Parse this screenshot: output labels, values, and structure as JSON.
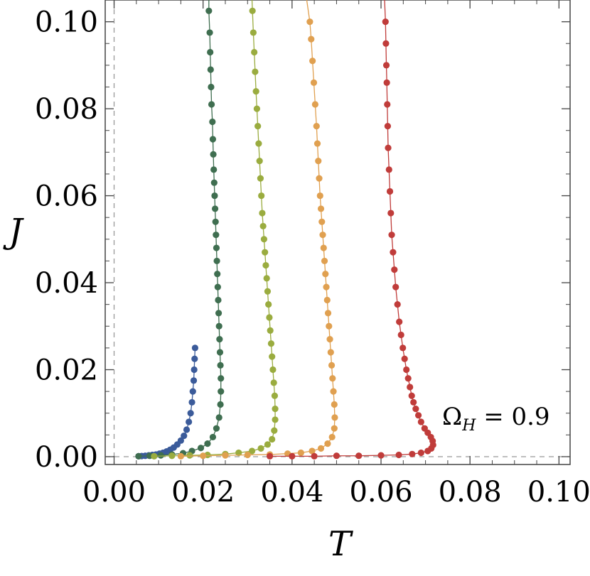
{
  "chart_data": {
    "type": "scatter",
    "title": "",
    "xlabel": "T",
    "ylabel": "J",
    "xlim": [
      -0.002,
      0.1025
    ],
    "ylim": [
      -0.0018,
      0.105
    ],
    "xticks": [
      "0.00",
      "0.02",
      "0.04",
      "0.06",
      "0.08",
      "0.10"
    ],
    "yticks": [
      "0.00",
      "0.02",
      "0.04",
      "0.06",
      "0.08",
      "0.10"
    ],
    "grid": false,
    "legend": "none",
    "annotation": {
      "text_main": "Ω",
      "text_sub": "H",
      "text_rest": " = 0.9"
    },
    "series": [
      {
        "color": "#3b5b9a",
        "points": [
          [
            0.0055,
            0.0001
          ],
          [
            0.0062,
            0.00015
          ],
          [
            0.007,
            0.0002
          ],
          [
            0.0078,
            0.0003
          ],
          [
            0.0086,
            0.0004
          ],
          [
            0.0094,
            0.0005
          ],
          [
            0.0102,
            0.0007
          ],
          [
            0.011,
            0.0009
          ],
          [
            0.0118,
            0.0012
          ],
          [
            0.0126,
            0.0016
          ],
          [
            0.0134,
            0.0021
          ],
          [
            0.0142,
            0.0028
          ],
          [
            0.015,
            0.0037
          ],
          [
            0.0157,
            0.0048
          ],
          [
            0.0163,
            0.0062
          ],
          [
            0.0168,
            0.008
          ],
          [
            0.0172,
            0.01
          ],
          [
            0.0175,
            0.0125
          ],
          [
            0.0177,
            0.015
          ],
          [
            0.0179,
            0.0175
          ],
          [
            0.018,
            0.02
          ],
          [
            0.0181,
            0.0225
          ],
          [
            0.0182,
            0.025
          ]
        ]
      },
      {
        "color": "#3f6e50",
        "points": [
          [
            0.0055,
            0.0001
          ],
          [
            0.008,
            0.0002
          ],
          [
            0.0105,
            0.0003
          ],
          [
            0.013,
            0.0005
          ],
          [
            0.0155,
            0.0008
          ],
          [
            0.0175,
            0.0013
          ],
          [
            0.0195,
            0.002
          ],
          [
            0.021,
            0.003
          ],
          [
            0.0222,
            0.0045
          ],
          [
            0.023,
            0.0065
          ],
          [
            0.0236,
            0.009
          ],
          [
            0.0239,
            0.012
          ],
          [
            0.024,
            0.015
          ],
          [
            0.024,
            0.018
          ],
          [
            0.0239,
            0.021
          ],
          [
            0.0238,
            0.024
          ],
          [
            0.0237,
            0.027
          ],
          [
            0.0236,
            0.03
          ],
          [
            0.0235,
            0.033
          ],
          [
            0.0234,
            0.036
          ],
          [
            0.0233,
            0.039
          ],
          [
            0.0232,
            0.042
          ],
          [
            0.0231,
            0.045
          ],
          [
            0.023,
            0.048
          ],
          [
            0.0229,
            0.051
          ],
          [
            0.0228,
            0.054
          ],
          [
            0.0227,
            0.057
          ],
          [
            0.0226,
            0.06
          ],
          [
            0.0225,
            0.063
          ],
          [
            0.0224,
            0.066
          ],
          [
            0.0223,
            0.0695
          ],
          [
            0.0222,
            0.073
          ],
          [
            0.0221,
            0.077
          ],
          [
            0.0219,
            0.081
          ],
          [
            0.0218,
            0.085
          ],
          [
            0.0217,
            0.089
          ],
          [
            0.0216,
            0.093
          ],
          [
            0.0215,
            0.0975
          ],
          [
            0.0213,
            0.1025
          ]
        ]
      },
      {
        "color": "#9aac3f",
        "points": [
          [
            0.009,
            0.0001
          ],
          [
            0.013,
            0.0002
          ],
          [
            0.017,
            0.0003
          ],
          [
            0.021,
            0.0004
          ],
          [
            0.025,
            0.0006
          ],
          [
            0.028,
            0.0009
          ],
          [
            0.031,
            0.0013
          ],
          [
            0.033,
            0.0019
          ],
          [
            0.0345,
            0.0028
          ],
          [
            0.0355,
            0.004
          ],
          [
            0.036,
            0.006
          ],
          [
            0.0362,
            0.0085
          ],
          [
            0.0362,
            0.011
          ],
          [
            0.0361,
            0.014
          ],
          [
            0.0359,
            0.017
          ],
          [
            0.0357,
            0.02
          ],
          [
            0.0355,
            0.023
          ],
          [
            0.0353,
            0.026
          ],
          [
            0.0351,
            0.029
          ],
          [
            0.0349,
            0.032
          ],
          [
            0.0347,
            0.035
          ],
          [
            0.0345,
            0.038
          ],
          [
            0.0343,
            0.041
          ],
          [
            0.0341,
            0.044
          ],
          [
            0.0339,
            0.047
          ],
          [
            0.0337,
            0.05
          ],
          [
            0.0335,
            0.053
          ],
          [
            0.0333,
            0.056
          ],
          [
            0.0331,
            0.06
          ],
          [
            0.0329,
            0.064
          ],
          [
            0.0327,
            0.068
          ],
          [
            0.0325,
            0.072
          ],
          [
            0.0323,
            0.076
          ],
          [
            0.0321,
            0.08
          ],
          [
            0.0319,
            0.084
          ],
          [
            0.0317,
            0.0885
          ],
          [
            0.0315,
            0.093
          ],
          [
            0.0313,
            0.0975
          ],
          [
            0.0311,
            0.1025
          ]
        ]
      },
      {
        "color": "#e0a050",
        "points": [
          [
            0.015,
            0.0001
          ],
          [
            0.02,
            0.0002
          ],
          [
            0.025,
            0.0003
          ],
          [
            0.03,
            0.0004
          ],
          [
            0.035,
            0.0005
          ],
          [
            0.039,
            0.0007
          ],
          [
            0.042,
            0.0009
          ],
          [
            0.0445,
            0.0013
          ],
          [
            0.0465,
            0.0019
          ],
          [
            0.048,
            0.003
          ],
          [
            0.049,
            0.0045
          ],
          [
            0.0495,
            0.0065
          ],
          [
            0.0496,
            0.009
          ],
          [
            0.0495,
            0.012
          ],
          [
            0.0493,
            0.015
          ],
          [
            0.0491,
            0.018
          ],
          [
            0.0489,
            0.021
          ],
          [
            0.0487,
            0.024
          ],
          [
            0.0485,
            0.027
          ],
          [
            0.0483,
            0.03
          ],
          [
            0.0481,
            0.033
          ],
          [
            0.0479,
            0.036
          ],
          [
            0.0477,
            0.039
          ],
          [
            0.0475,
            0.042
          ],
          [
            0.0473,
            0.045
          ],
          [
            0.0471,
            0.048
          ],
          [
            0.0469,
            0.051
          ],
          [
            0.0467,
            0.054
          ],
          [
            0.0465,
            0.057
          ],
          [
            0.0463,
            0.06
          ],
          [
            0.0461,
            0.064
          ],
          [
            0.0459,
            0.068
          ],
          [
            0.0457,
            0.072
          ],
          [
            0.0455,
            0.076
          ],
          [
            0.0452,
            0.081
          ],
          [
            0.0449,
            0.086
          ],
          [
            0.0446,
            0.091
          ],
          [
            0.0443,
            0.096
          ],
          [
            0.044,
            0.1
          ]
        ]
      },
      {
        "color": "#c03c3a",
        "points": [
          [
            0.035,
            0.0001
          ],
          [
            0.04,
            0.0001
          ],
          [
            0.045,
            0.0001
          ],
          [
            0.05,
            0.0002
          ],
          [
            0.055,
            0.0002
          ],
          [
            0.06,
            0.0003
          ],
          [
            0.064,
            0.0004
          ],
          [
            0.067,
            0.0006
          ],
          [
            0.069,
            0.0009
          ],
          [
            0.0705,
            0.0013
          ],
          [
            0.0713,
            0.0019
          ],
          [
            0.0717,
            0.0027
          ],
          [
            0.0716,
            0.0036
          ],
          [
            0.0712,
            0.0045
          ],
          [
            0.0705,
            0.0055
          ],
          [
            0.0698,
            0.0065
          ],
          [
            0.069,
            0.008
          ],
          [
            0.0684,
            0.0095
          ],
          [
            0.0678,
            0.011
          ],
          [
            0.0673,
            0.0125
          ],
          [
            0.0669,
            0.014
          ],
          [
            0.0665,
            0.016
          ],
          [
            0.0661,
            0.018
          ],
          [
            0.0657,
            0.02
          ],
          [
            0.0653,
            0.0225
          ],
          [
            0.0649,
            0.025
          ],
          [
            0.0645,
            0.028
          ],
          [
            0.0641,
            0.031
          ],
          [
            0.0637,
            0.035
          ],
          [
            0.0633,
            0.039
          ],
          [
            0.063,
            0.043
          ],
          [
            0.0627,
            0.047
          ],
          [
            0.0624,
            0.051
          ],
          [
            0.0622,
            0.056
          ],
          [
            0.062,
            0.061
          ],
          [
            0.0618,
            0.066
          ],
          [
            0.0616,
            0.071
          ],
          [
            0.0615,
            0.076
          ],
          [
            0.0614,
            0.081
          ],
          [
            0.0613,
            0.086
          ],
          [
            0.0612,
            0.09
          ],
          [
            0.0611,
            0.095
          ],
          [
            0.061,
            0.1
          ]
        ]
      }
    ],
    "curve_tops": [
      {
        "series": 0,
        "extend_to": [
          0.0182,
          0.025
        ]
      },
      {
        "series": 1,
        "extend_to": [
          0.0213,
          0.105
        ]
      },
      {
        "series": 2,
        "extend_to": [
          0.031,
          0.105
        ]
      },
      {
        "series": 3,
        "extend_to": [
          0.0433,
          0.105
        ]
      },
      {
        "series": 4,
        "extend_to": [
          0.0608,
          0.105
        ]
      }
    ]
  }
}
